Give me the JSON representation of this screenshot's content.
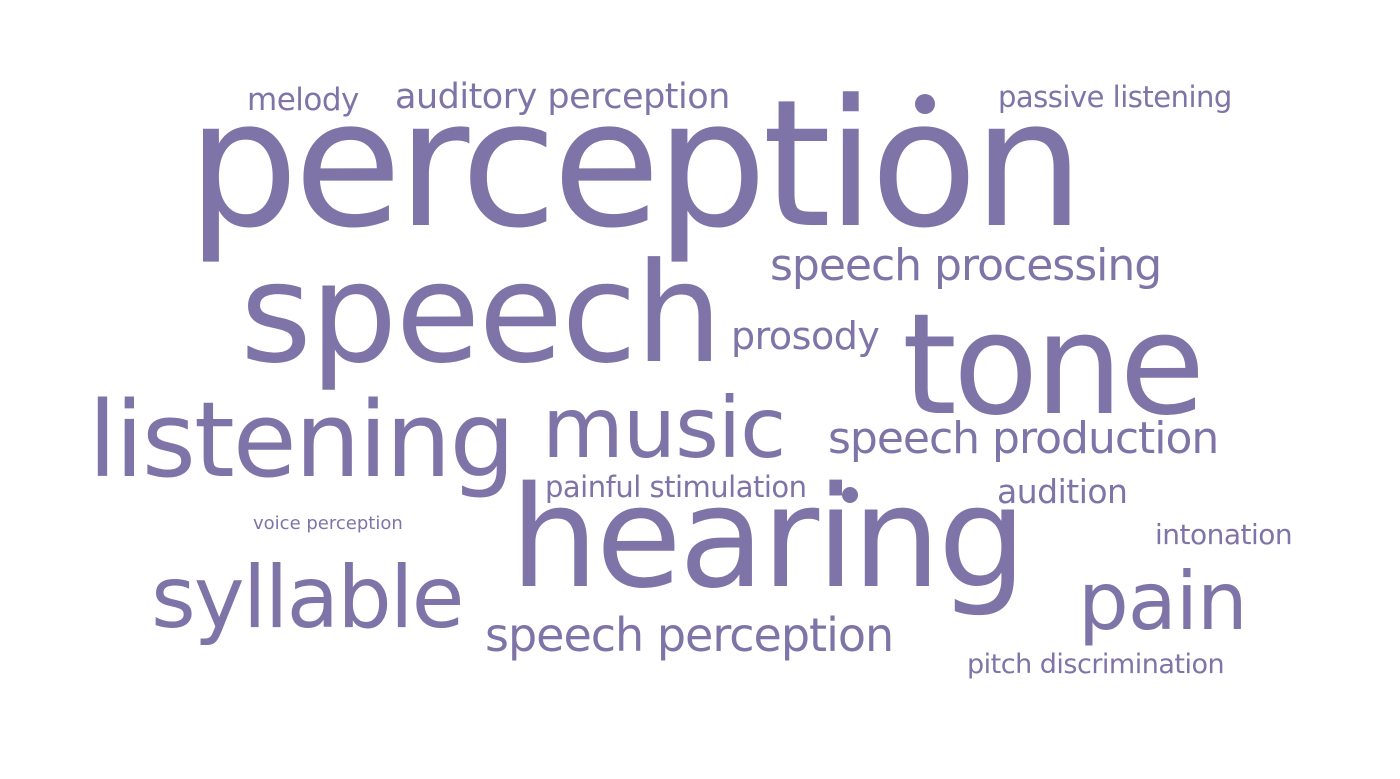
{
  "colors": {
    "word": "#7f74a8",
    "background": "#ffffff"
  },
  "words": [
    {
      "id": "perception",
      "text": "perception"
    },
    {
      "id": "speech",
      "text": "speech"
    },
    {
      "id": "tone",
      "text": "tone"
    },
    {
      "id": "hearing",
      "text": "hearing"
    },
    {
      "id": "listening",
      "text": "listening"
    },
    {
      "id": "music",
      "text": "music"
    },
    {
      "id": "syllable",
      "text": "syllable"
    },
    {
      "id": "pain",
      "text": "pain"
    },
    {
      "id": "speech-processing",
      "text": "speech processing"
    },
    {
      "id": "speech-production",
      "text": "speech production"
    },
    {
      "id": "speech-perception",
      "text": "speech perception"
    },
    {
      "id": "auditory-perception",
      "text": "auditory perception"
    },
    {
      "id": "prosody",
      "text": "prosody"
    },
    {
      "id": "passive-listening",
      "text": "passive listening"
    },
    {
      "id": "melody",
      "text": "melody"
    },
    {
      "id": "painful-stimulation",
      "text": "painful stimulation"
    },
    {
      "id": "audition",
      "text": "audition"
    },
    {
      "id": "intonation",
      "text": "intonation"
    },
    {
      "id": "pitch-discrimination",
      "text": "pitch discrimination"
    },
    {
      "id": "voice-perception",
      "text": "voice perception"
    }
  ]
}
